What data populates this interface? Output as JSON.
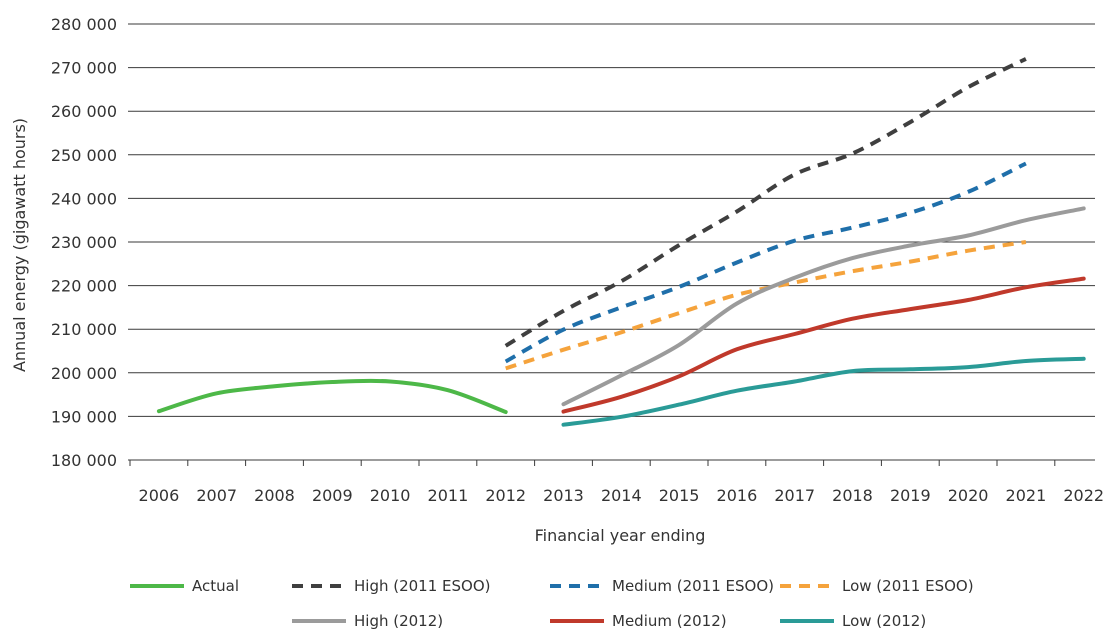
{
  "chart_data": {
    "type": "line",
    "title": "",
    "xlabel": "Financial year ending",
    "ylabel": "Annual energy (gigawatt hours)",
    "ylim": [
      180000,
      280000
    ],
    "yticks": [
      180000,
      190000,
      200000,
      210000,
      220000,
      230000,
      240000,
      250000,
      260000,
      270000,
      280000
    ],
    "ytick_labels": [
      "180 000",
      "190 000",
      "200 000",
      "210 000",
      "220 000",
      "230 000",
      "240 000",
      "250 000",
      "260 000",
      "270 000",
      "280 000"
    ],
    "categories": [
      "2006",
      "2007",
      "2008",
      "2009",
      "2010",
      "2011",
      "2012",
      "2013",
      "2014",
      "2015",
      "2016",
      "2017",
      "2018",
      "2019",
      "2020",
      "2021",
      "2022"
    ],
    "grid": "horizontal",
    "legend_position": "bottom",
    "series": [
      {
        "name": "Actual",
        "style": "solid",
        "color": "#4db848",
        "points": [
          [
            2006,
            191200
          ],
          [
            2007,
            195300
          ],
          [
            2008,
            196900
          ],
          [
            2009,
            197900
          ],
          [
            2010,
            198000
          ],
          [
            2011,
            196000
          ],
          [
            2012,
            191000
          ]
        ]
      },
      {
        "name": "High (2011 ESOO)",
        "style": "dashed",
        "color": "#3f3f3f",
        "points": [
          [
            2012,
            206200
          ],
          [
            2013,
            214200
          ],
          [
            2014,
            221000
          ],
          [
            2015,
            229300
          ],
          [
            2016,
            237000
          ],
          [
            2017,
            245500
          ],
          [
            2018,
            250300
          ],
          [
            2019,
            257500
          ],
          [
            2020,
            265500
          ],
          [
            2021,
            272000
          ]
        ]
      },
      {
        "name": "Medium (2011 ESOO)",
        "style": "dashed",
        "color": "#1f6faa",
        "points": [
          [
            2012,
            202600
          ],
          [
            2013,
            209900
          ],
          [
            2014,
            215000
          ],
          [
            2015,
            219700
          ],
          [
            2016,
            225300
          ],
          [
            2017,
            230300
          ],
          [
            2018,
            233300
          ],
          [
            2019,
            236700
          ],
          [
            2020,
            241500
          ],
          [
            2021,
            248000
          ]
        ]
      },
      {
        "name": "Low (2011 ESOO)",
        "style": "dashed",
        "color": "#f5a33c",
        "points": [
          [
            2012,
            201000
          ],
          [
            2013,
            205300
          ],
          [
            2014,
            209300
          ],
          [
            2015,
            213700
          ],
          [
            2016,
            217900
          ],
          [
            2017,
            220700
          ],
          [
            2018,
            223300
          ],
          [
            2019,
            225500
          ],
          [
            2020,
            228000
          ],
          [
            2021,
            230000
          ]
        ]
      },
      {
        "name": "High (2012)",
        "style": "solid",
        "color": "#9b9b9b",
        "points": [
          [
            2013,
            192800
          ],
          [
            2014,
            199400
          ],
          [
            2015,
            206400
          ],
          [
            2016,
            215900
          ],
          [
            2017,
            221800
          ],
          [
            2018,
            226300
          ],
          [
            2019,
            229200
          ],
          [
            2020,
            231500
          ],
          [
            2021,
            235000
          ],
          [
            2022,
            237700
          ]
        ]
      },
      {
        "name": "Medium (2012)",
        "style": "solid",
        "color": "#c0392b",
        "points": [
          [
            2013,
            191100
          ],
          [
            2014,
            194500
          ],
          [
            2015,
            199200
          ],
          [
            2016,
            205400
          ],
          [
            2017,
            208900
          ],
          [
            2018,
            212400
          ],
          [
            2019,
            214600
          ],
          [
            2020,
            216700
          ],
          [
            2021,
            219600
          ],
          [
            2022,
            221600
          ]
        ]
      },
      {
        "name": "Low (2012)",
        "style": "solid",
        "color": "#2a9b97",
        "points": [
          [
            2013,
            188100
          ],
          [
            2014,
            189900
          ],
          [
            2015,
            192700
          ],
          [
            2016,
            195900
          ],
          [
            2017,
            198000
          ],
          [
            2018,
            200400
          ],
          [
            2019,
            200800
          ],
          [
            2020,
            201300
          ],
          [
            2021,
            202700
          ],
          [
            2022,
            203200
          ]
        ]
      }
    ]
  }
}
